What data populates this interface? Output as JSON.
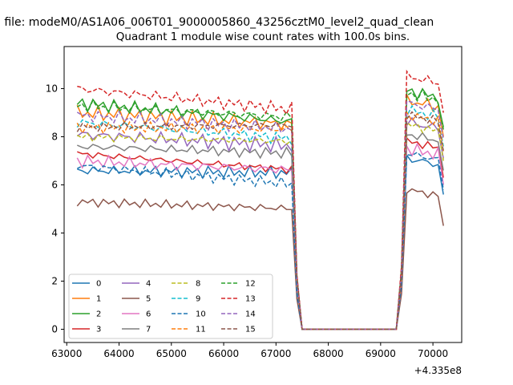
{
  "suptitle": "n file: modeM0/AS1A06_006T01_9000005860_43256cztM0_level2_quad_clean",
  "chart_data": {
    "type": "line",
    "title": "Quadrant 1 module wise count rates with 100.0s bins.",
    "xlabel": "",
    "ylabel": "",
    "x_offset_label": "+4.335e8",
    "xlim": [
      62950,
      70550
    ],
    "ylim": [
      -0.55,
      11.75
    ],
    "x_ticks": [
      63000,
      64000,
      65000,
      66000,
      67000,
      68000,
      69000,
      70000
    ],
    "y_ticks": [
      0,
      2,
      4,
      6,
      8,
      10
    ],
    "grid": false,
    "legend": {
      "position": "lower-left",
      "columns": 4
    },
    "series": [
      {
        "name": "0",
        "color": "#1f77b4",
        "dash": "solid",
        "base": 6.6,
        "trend": -0.1,
        "noise": 0.28,
        "phase": 0.3
      },
      {
        "name": "1",
        "color": "#ff7f0e",
        "dash": "solid",
        "base": 9.0,
        "trend": -0.5,
        "noise": 0.35,
        "phase": 1.1
      },
      {
        "name": "2",
        "color": "#2ca02c",
        "dash": "solid",
        "base": 9.4,
        "trend": -0.8,
        "noise": 0.3,
        "phase": 2.0
      },
      {
        "name": "3",
        "color": "#d62728",
        "dash": "solid",
        "base": 7.3,
        "trend": -0.7,
        "noise": 0.2,
        "phase": 2.7
      },
      {
        "name": "4",
        "color": "#9467bd",
        "dash": "solid",
        "base": 8.1,
        "trend": -0.5,
        "noise": 0.35,
        "phase": 3.5
      },
      {
        "name": "5",
        "color": "#8c564b",
        "dash": "solid",
        "base": 5.3,
        "trend": -0.3,
        "noise": 0.2,
        "phase": 4.2
      },
      {
        "name": "6",
        "color": "#e377c2",
        "dash": "solid",
        "base": 7.0,
        "trend": -0.4,
        "noise": 0.3,
        "phase": 5.0
      },
      {
        "name": "7",
        "color": "#7f7f7f",
        "dash": "solid",
        "base": 7.6,
        "trend": -0.3,
        "noise": 0.25,
        "phase": 5.7
      },
      {
        "name": "8",
        "color": "#bcbd22",
        "dash": "dashed",
        "base": 8.0,
        "trend": -0.2,
        "noise": 0.2,
        "phase": 0.8
      },
      {
        "name": "9",
        "color": "#17becf",
        "dash": "dashed",
        "base": 8.6,
        "trend": -0.7,
        "noise": 0.3,
        "phase": 1.6
      },
      {
        "name": "10",
        "color": "#1f77b4",
        "dash": "dashed",
        "base": 6.8,
        "trend": -0.8,
        "noise": 0.25,
        "phase": 2.4
      },
      {
        "name": "11",
        "color": "#ff7f0e",
        "dash": "dashed",
        "base": 8.4,
        "trend": -0.1,
        "noise": 0.25,
        "phase": 3.1
      },
      {
        "name": "12",
        "color": "#2ca02c",
        "dash": "dashed",
        "base": 9.3,
        "trend": -0.5,
        "noise": 0.3,
        "phase": 3.9
      },
      {
        "name": "13",
        "color": "#d62728",
        "dash": "dashed",
        "base": 10.0,
        "trend": -0.9,
        "noise": 0.3,
        "phase": 4.6
      },
      {
        "name": "14",
        "color": "#9467bd",
        "dash": "dashed",
        "base": 8.9,
        "trend": -0.6,
        "noise": 0.3,
        "phase": 5.4
      },
      {
        "name": "15",
        "color": "#8c564b",
        "dash": "dashed",
        "base": 8.4,
        "trend": 0.1,
        "noise": 0.2,
        "phase": 6.1
      }
    ],
    "time_bins": {
      "start": 63200,
      "end": 70200,
      "step": 100,
      "gap_start": 67500,
      "gap_end": 69300,
      "edge_in_from": 67300,
      "edge_out_to": 69500
    }
  }
}
